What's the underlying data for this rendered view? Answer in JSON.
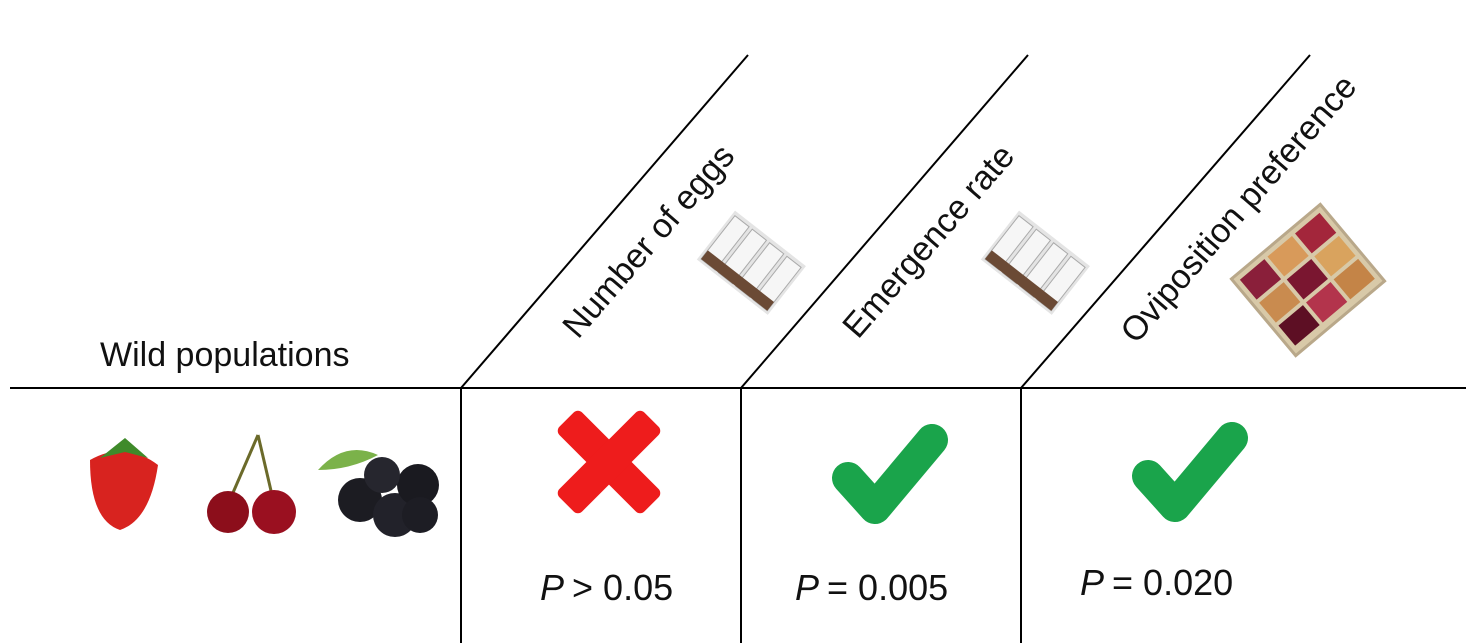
{
  "row_header": "Wild populations",
  "columns": [
    {
      "label": "Number of eggs",
      "stat": "P",
      "result": "> 0.05"
    },
    {
      "label": "Emergence rate",
      "stat": "P",
      "result": "= 0.005"
    },
    {
      "label": "Oviposition preference",
      "stat": "P",
      "result": "= 0.020"
    }
  ]
}
